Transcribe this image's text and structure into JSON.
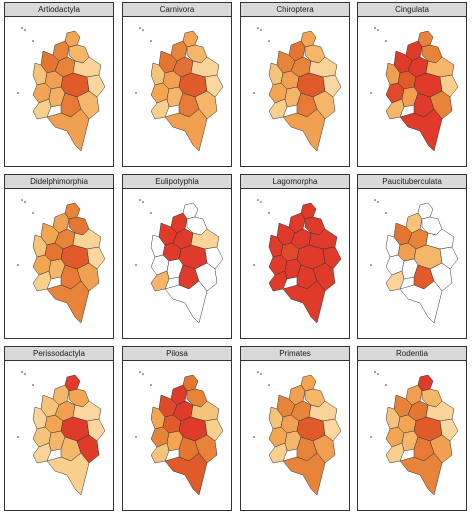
{
  "figure": {
    "panels": [
      {
        "title": "Artiodactyla",
        "fills": [
          "#f3a552",
          "#e8843a",
          "#f5b66a",
          "#e57632",
          "#f6c37a",
          "#e8843a",
          "#f0a050",
          "#fad398",
          "#e05a2a",
          "#f1a455",
          "#fbd7a0",
          "#f3b062",
          "#e87a35",
          "#f9cf8e",
          "#f5b66a",
          "#f0a050"
        ]
      },
      {
        "title": "Carnivora",
        "fills": [
          "#f3a552",
          "#e8843a",
          "#f5b66a",
          "#e57632",
          "#f6c37a",
          "#e27038",
          "#f0a050",
          "#fad398",
          "#e05a2a",
          "#f3a552",
          "#fbd7a0",
          "#f5b66a",
          "#e87a35",
          "#f9cf8e",
          "#f5b66a",
          "#f0a050"
        ]
      },
      {
        "title": "Chiroptera",
        "fills": [
          "#f3a552",
          "#e57632",
          "#f5b66a",
          "#e8843a",
          "#f6c37a",
          "#e8843a",
          "#f0a050",
          "#fad398",
          "#e05a2a",
          "#f3a552",
          "#fbd7a0",
          "#f5b66a",
          "#e87a35",
          "#f9cf8e",
          "#f5b66a",
          "#f0a050"
        ]
      },
      {
        "title": "Cingulata",
        "fills": [
          "#e8843a",
          "#e03a2a",
          "#e8843a",
          "#e03a2a",
          "#f0a050",
          "#e03a2a",
          "#e05a2a",
          "#f5b66a",
          "#e03a2a",
          "#e04a2a",
          "#f9cf8e",
          "#f0a050",
          "#e03a2a",
          "#f5b66a",
          "#e8843a",
          "#e03a2a"
        ]
      },
      {
        "title": "Didelphimorphia",
        "fills": [
          "#e8843a",
          "#f0a050",
          "#e57632",
          "#f3a552",
          "#f6c37a",
          "#e8843a",
          "#e57632",
          "#fad398",
          "#e05a2a",
          "#f3a552",
          "#fbd7a0",
          "#f5b66a",
          "#e87a35",
          "#f9cf8e",
          "#f0a050",
          "#e8843a"
        ]
      },
      {
        "title": "Eulipotyphla",
        "fills": [
          "#ffffff",
          "#e03a2a",
          "#ffffff",
          "#e03a2a",
          "#ffffff",
          "#e03a2a",
          "#e03a2a",
          "#fad398",
          "#e03a2a",
          "#ffffff",
          "#ffffff",
          "#ffffff",
          "#e03a2a",
          "#f5b66a",
          "#ffffff",
          "#ffffff"
        ]
      },
      {
        "title": "Lagomorpha",
        "fills": [
          "#e03a2a",
          "#e03a2a",
          "#e03a2a",
          "#e03a2a",
          "#e03a2a",
          "#e03a2a",
          "#e04a2a",
          "#e03a2a",
          "#e03a2a",
          "#e03a2a",
          "#e03a2a",
          "#e03a2a",
          "#e03a2a",
          "#e03a2a",
          "#e03a2a",
          "#e03a2a"
        ]
      },
      {
        "title": "Paucituberculata",
        "fills": [
          "#ffffff",
          "#f6c37a",
          "#ffffff",
          "#e57632",
          "#ffffff",
          "#e8843a",
          "#f0a050",
          "#ffffff",
          "#f5b66a",
          "#ffffff",
          "#ffffff",
          "#ffffff",
          "#e05a2a",
          "#fad398",
          "#ffffff",
          "#ffffff"
        ]
      },
      {
        "title": "Perissodactyla",
        "fills": [
          "#e03a2a",
          "#f5b66a",
          "#f3a552",
          "#f6c37a",
          "#fad398",
          "#f0a050",
          "#f3a552",
          "#fbd7a0",
          "#e03a2a",
          "#f6c37a",
          "#fbd7a0",
          "#f5b66a",
          "#f5b66a",
          "#fad398",
          "#e03a2a",
          "#f9cf8e"
        ]
      },
      {
        "title": "Pilosa",
        "fills": [
          "#e57632",
          "#e03a2a",
          "#e8843a",
          "#e04a2a",
          "#f3a552",
          "#e03a2a",
          "#e05a2a",
          "#f6c37a",
          "#e03a2a",
          "#e8843a",
          "#f9cf8e",
          "#f3a552",
          "#e57632",
          "#f6c37a",
          "#e8843a",
          "#e05a2a"
        ]
      },
      {
        "title": "Primates",
        "fills": [
          "#f3a552",
          "#f0a050",
          "#f5b66a",
          "#e8843a",
          "#f6c37a",
          "#e8843a",
          "#f0a050",
          "#fad398",
          "#e05a2a",
          "#f3a552",
          "#fbd7a0",
          "#f5b66a",
          "#e8843a",
          "#f9cf8e",
          "#f0a050",
          "#e8843a"
        ]
      },
      {
        "title": "Rodentia",
        "fills": [
          "#e03a2a",
          "#f0a050",
          "#f5b66a",
          "#e8843a",
          "#f6c37a",
          "#e57632",
          "#f3a552",
          "#fad398",
          "#e05a2a",
          "#f3a552",
          "#fbd7a0",
          "#f5b66a",
          "#e87a35",
          "#f9cf8e",
          "#f0a050",
          "#e8843a"
        ]
      }
    ]
  }
}
